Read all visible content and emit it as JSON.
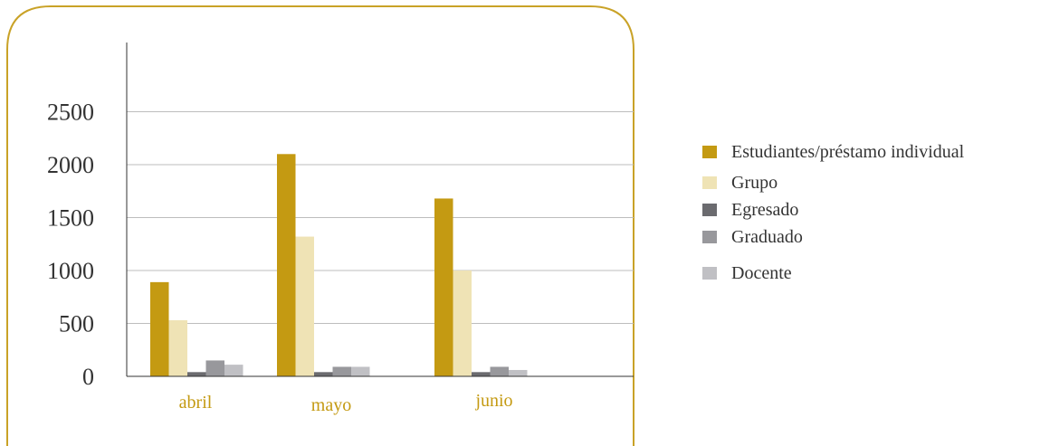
{
  "chart_data": {
    "type": "bar",
    "title": "",
    "xlabel": "",
    "ylabel": "",
    "categories": [
      "abril",
      "mayo",
      "junio"
    ],
    "ylim": [
      0,
      3000
    ],
    "yticks": [
      0,
      500,
      1000,
      1500,
      2000,
      2500
    ],
    "ytick_labels": [
      "0",
      "500",
      "1000",
      "1500",
      "2000",
      "2500"
    ],
    "grid": true,
    "legend_position": "right",
    "series": [
      {
        "name": "Estudiantes/préstamo individual",
        "color": "#c49a12",
        "values": [
          890,
          2100,
          1680
        ]
      },
      {
        "name": "Grupo",
        "color": "#efe3b5",
        "values": [
          530,
          1320,
          1000
        ]
      },
      {
        "name": "Egresado",
        "color": "#6b6b6f",
        "values": [
          40,
          40,
          40
        ]
      },
      {
        "name": "Graduado",
        "color": "#98989c",
        "values": [
          150,
          90,
          90
        ]
      },
      {
        "name": "Docente",
        "color": "#c0c0c4",
        "values": [
          110,
          90,
          60
        ]
      }
    ]
  },
  "style": {
    "frame_color": "#c9a227",
    "category_label_color": "#c49a12",
    "tick_label_color": "#333333",
    "gridline_color": "#bdbdbd"
  }
}
